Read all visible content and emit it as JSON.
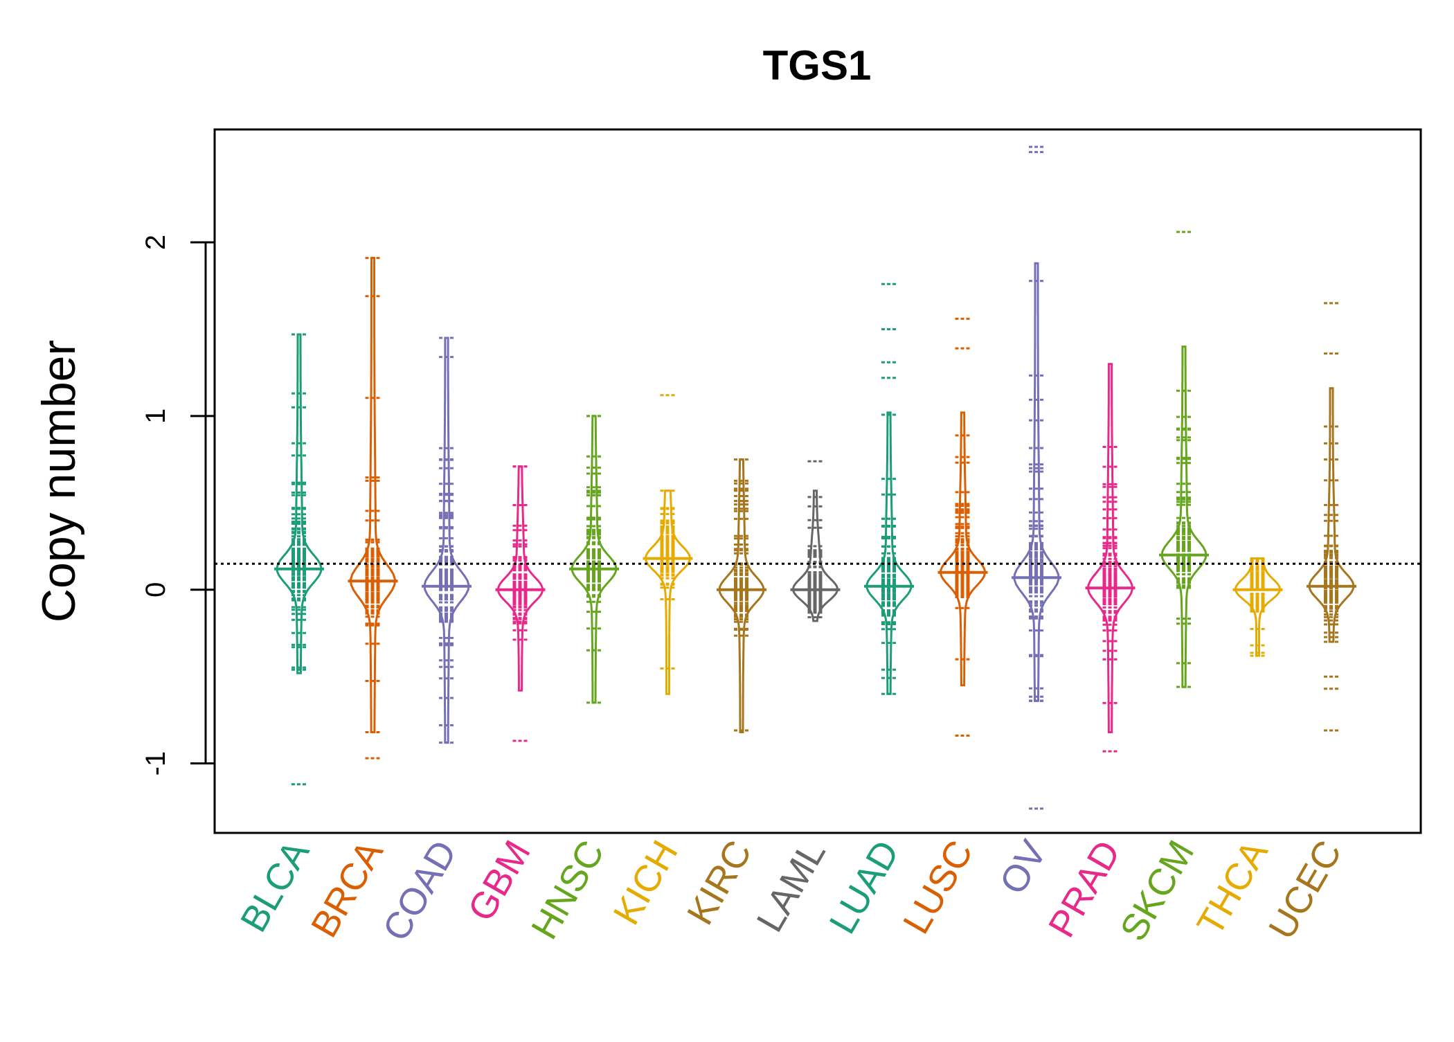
{
  "chart_data": {
    "type": "beanplot",
    "title": "TGS1",
    "xlabel": "",
    "ylabel": "Copy number",
    "ylim": [
      -1.4,
      2.65
    ],
    "yticks": [
      -1,
      0,
      1,
      2
    ],
    "reference_line": 0.15,
    "grid": false,
    "legend": "none",
    "categories": [
      "BLCA",
      "BRCA",
      "COAD",
      "GBM",
      "HNSC",
      "KICH",
      "KIRC",
      "LAML",
      "LUAD",
      "LUSC",
      "OV",
      "PRAD",
      "SKCM",
      "THCA",
      "UCEC"
    ],
    "colors": [
      "#1b9e77",
      "#d95f02",
      "#7570b3",
      "#e7298a",
      "#66a61e",
      "#e6ab02",
      "#a6761d",
      "#666666",
      "#1b9e77",
      "#d95f02",
      "#7570b3",
      "#e7298a",
      "#66a61e",
      "#e6ab02",
      "#a6761d"
    ],
    "series": [
      {
        "category": "BLCA",
        "mean": 0.12,
        "min": -0.48,
        "max": 1.47,
        "outliers": [
          -1.12,
          1.05,
          1.13,
          1.47
        ]
      },
      {
        "category": "BRCA",
        "mean": 0.05,
        "min": -0.82,
        "max": 1.91,
        "outliers": [
          -0.97,
          1.69,
          1.91
        ]
      },
      {
        "category": "COAD",
        "mean": 0.02,
        "min": -0.88,
        "max": 1.45,
        "outliers": [
          -0.88,
          -0.78,
          1.34,
          1.45
        ]
      },
      {
        "category": "GBM",
        "mean": 0.0,
        "min": -0.58,
        "max": 0.71,
        "outliers": [
          -0.87,
          0.71
        ]
      },
      {
        "category": "HNSC",
        "mean": 0.12,
        "min": -0.65,
        "max": 1.0,
        "outliers": [
          -0.65,
          1.0
        ]
      },
      {
        "category": "KICH",
        "mean": 0.18,
        "min": -0.6,
        "max": 0.57,
        "outliers": [
          1.12
        ]
      },
      {
        "category": "KIRC",
        "mean": 0.0,
        "min": -0.82,
        "max": 0.75,
        "outliers": [
          -0.81,
          0.75
        ]
      },
      {
        "category": "LAML",
        "mean": 0.0,
        "min": -0.18,
        "max": 0.57,
        "outliers": [
          0.74
        ]
      },
      {
        "category": "LUAD",
        "mean": 0.02,
        "min": -0.6,
        "max": 1.02,
        "outliers": [
          -0.6,
          1.22,
          1.31,
          1.5,
          1.76
        ]
      },
      {
        "category": "LUSC",
        "mean": 0.1,
        "min": -0.55,
        "max": 1.02,
        "outliers": [
          -0.84,
          1.39,
          1.56
        ]
      },
      {
        "category": "OV",
        "mean": 0.07,
        "min": -0.64,
        "max": 1.88,
        "outliers": [
          -1.26,
          2.52,
          2.55
        ]
      },
      {
        "category": "PRAD",
        "mean": 0.01,
        "min": -0.82,
        "max": 1.3,
        "outliers": [
          -0.93
        ]
      },
      {
        "category": "SKCM",
        "mean": 0.2,
        "min": -0.56,
        "max": 1.4,
        "outliers": [
          2.06
        ]
      },
      {
        "category": "THCA",
        "mean": 0.0,
        "min": -0.38,
        "max": 0.18,
        "outliers": [
          -0.38,
          -0.32
        ]
      },
      {
        "category": "UCEC",
        "mean": 0.02,
        "min": -0.3,
        "max": 1.16,
        "outliers": [
          -0.81,
          -0.57,
          -0.5,
          1.36,
          1.65
        ]
      }
    ]
  }
}
